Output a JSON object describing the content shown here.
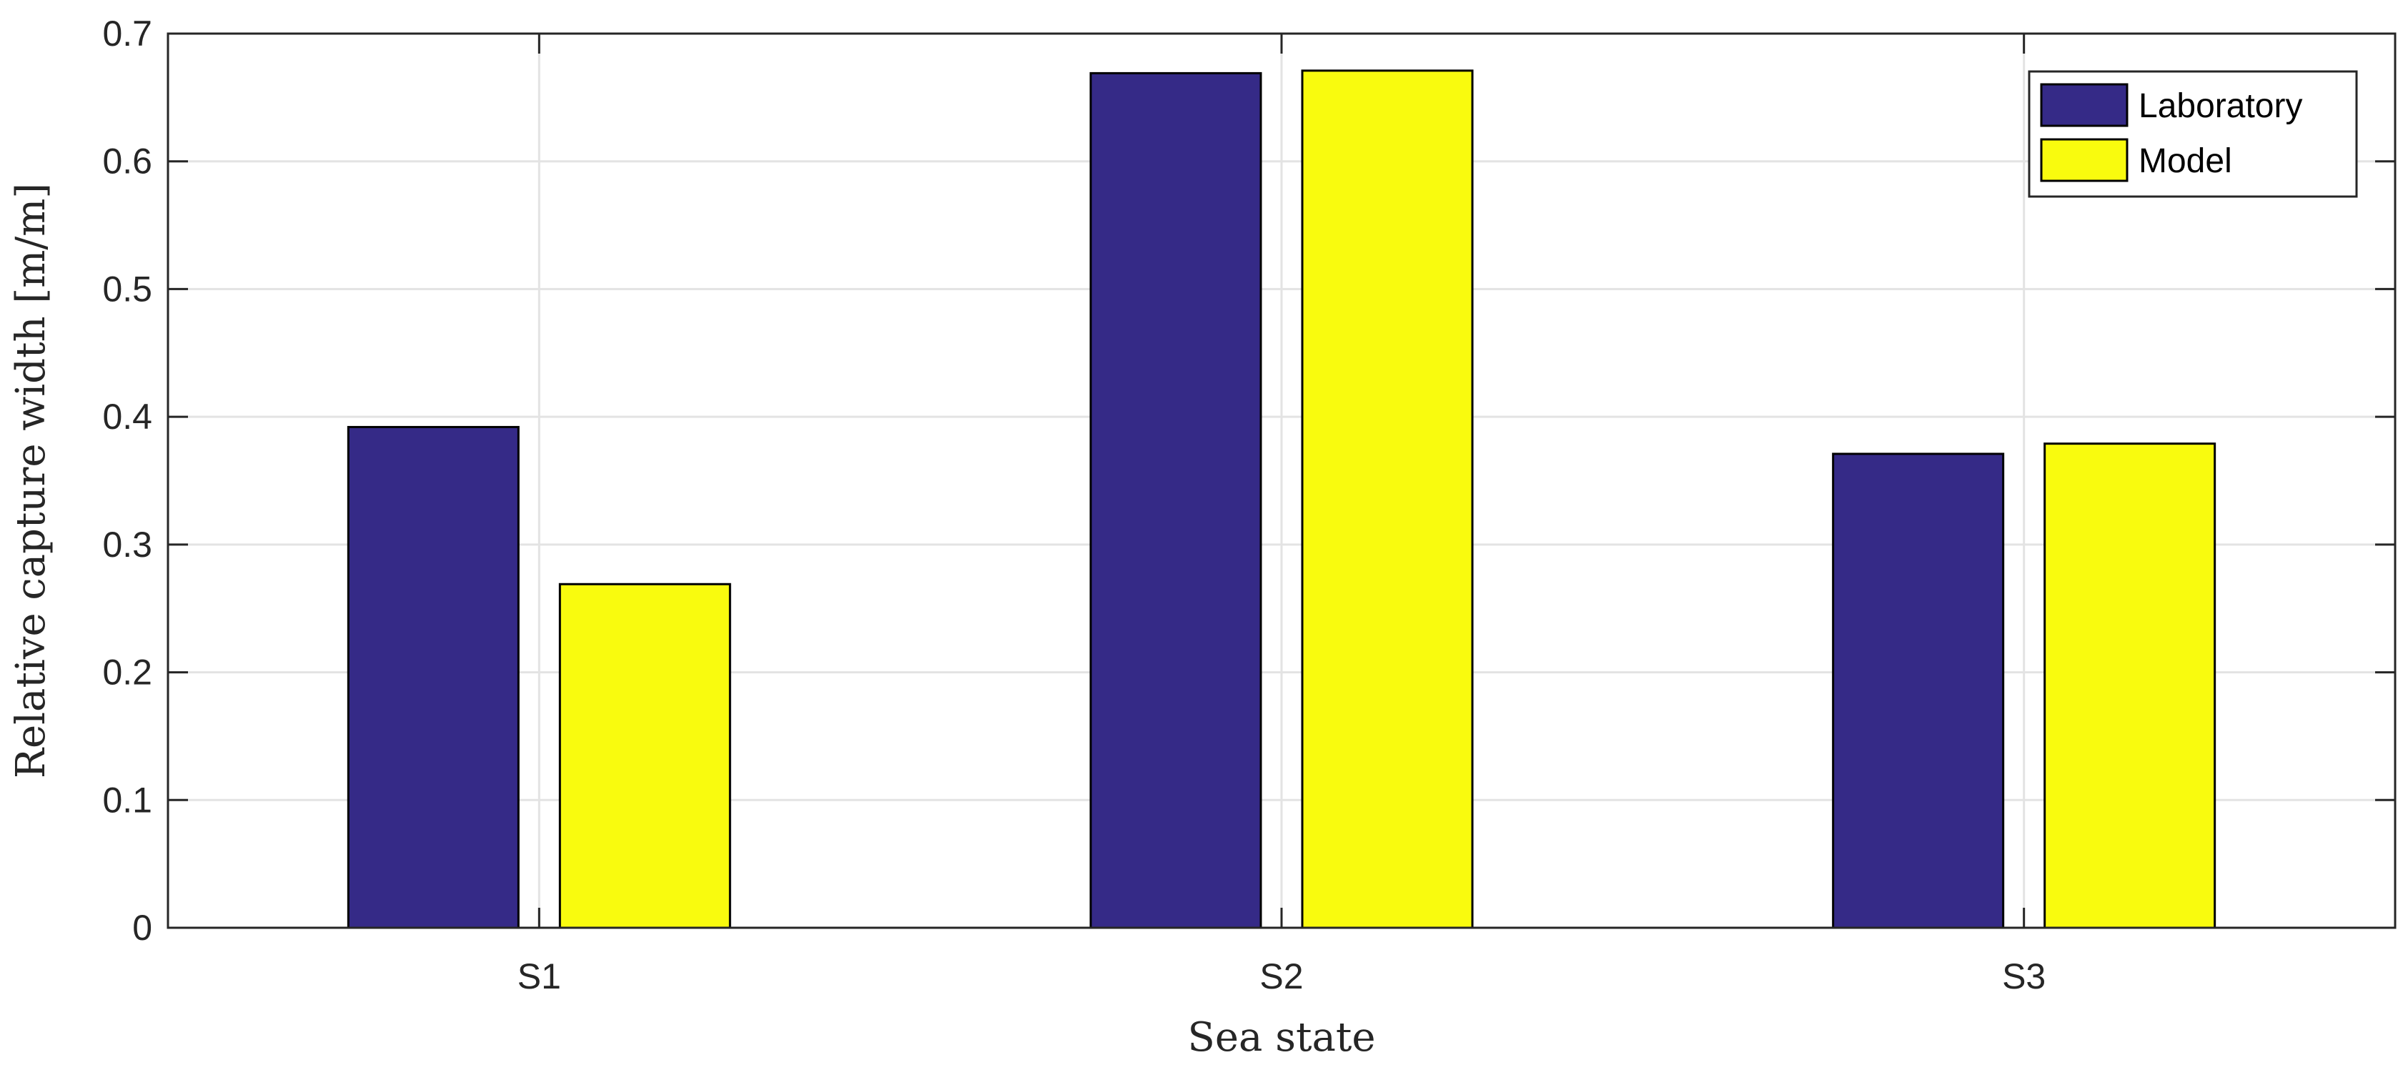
{
  "chart_data": {
    "type": "bar",
    "title": "",
    "xlabel": "Sea state",
    "ylabel": "Relative capture width [m/m]",
    "categories": [
      "S1",
      "S2",
      "S3"
    ],
    "series": [
      {
        "name": "Laboratory",
        "values": [
          0.392,
          0.669,
          0.371
        ],
        "color": "#352a87"
      },
      {
        "name": "Model",
        "values": [
          0.269,
          0.671,
          0.379
        ],
        "color": "#f9fb0e"
      }
    ],
    "ylim": [
      0,
      0.7
    ],
    "yticks": [
      "0",
      "0.1",
      "0.2",
      "0.3",
      "0.4",
      "0.5",
      "0.6",
      "0.7"
    ],
    "grid": true,
    "legend_position": "top-right"
  }
}
